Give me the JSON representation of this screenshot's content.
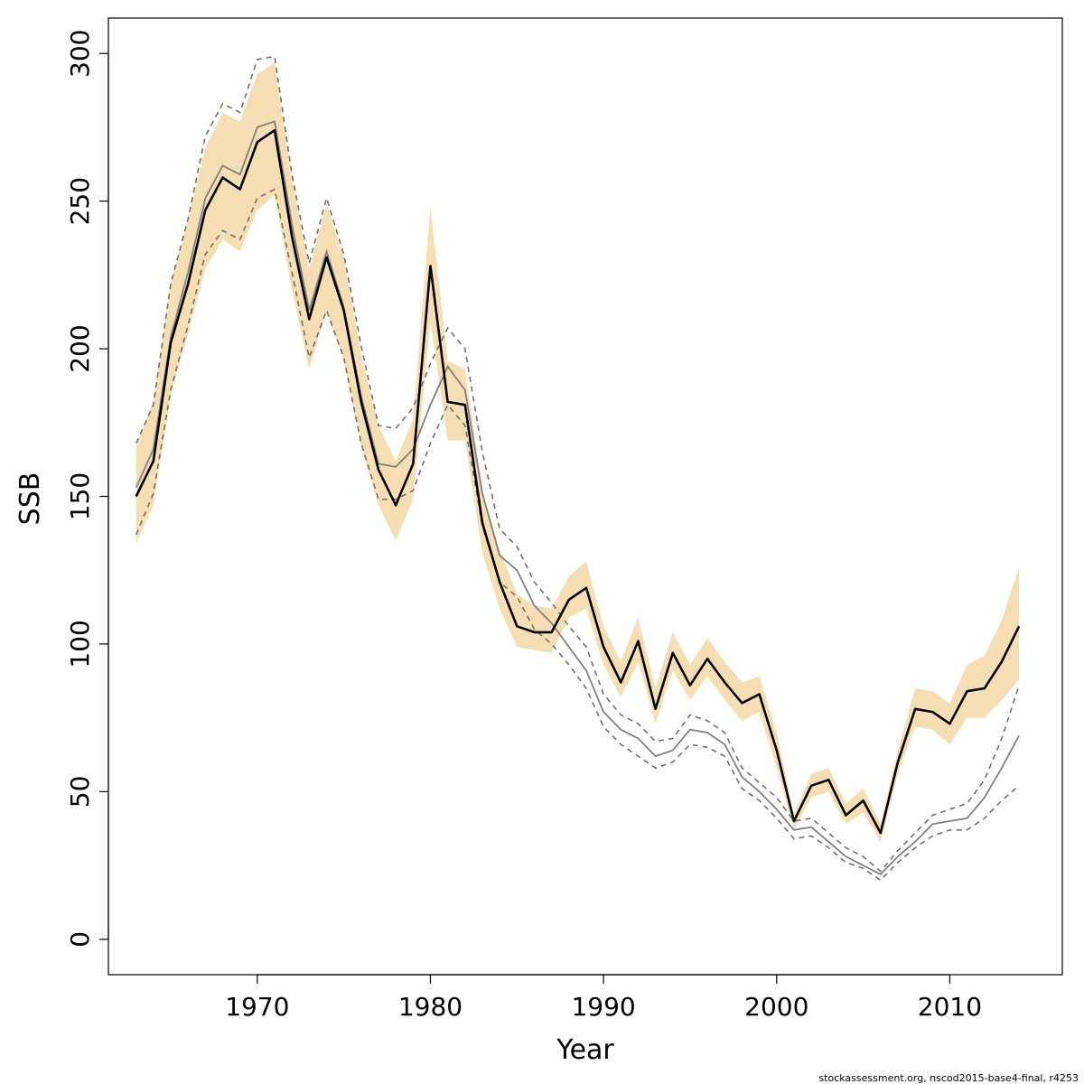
{
  "chart_data": {
    "type": "line",
    "xlabel": "Year",
    "ylabel": "SSB",
    "credit": "stockassessment.org, nscod2015-base4-final, r4253",
    "xlim": [
      1961.4,
      2016.5
    ],
    "ylim": [
      -12,
      312
    ],
    "xticks": [
      1970,
      1980,
      1990,
      2000,
      2010
    ],
    "yticks": [
      0,
      50,
      100,
      150,
      200,
      250,
      300
    ],
    "grid": false,
    "legend": "none",
    "colors": {
      "band": "#f5deb3",
      "estimate": "#000000",
      "comparison": "#808080",
      "comparison_ci": "#707070"
    },
    "x": [
      1963,
      1964,
      1965,
      1966,
      1967,
      1968,
      1969,
      1970,
      1971,
      1972,
      1973,
      1974,
      1975,
      1976,
      1977,
      1978,
      1979,
      1980,
      1981,
      1982,
      1983,
      1984,
      1985,
      1986,
      1987,
      1988,
      1989,
      1990,
      1991,
      1992,
      1993,
      1994,
      1995,
      1996,
      1997,
      1998,
      1999,
      2000,
      2001,
      2002,
      2003,
      2004,
      2005,
      2006,
      2007,
      2008,
      2009,
      2010,
      2011,
      2012,
      2013,
      2014
    ],
    "series": [
      {
        "role": "estimate",
        "values": [
          150,
          162,
          202,
          222,
          247,
          258,
          254,
          270,
          274,
          238,
          210,
          231,
          213,
          182,
          159,
          147,
          161,
          228,
          182,
          181,
          141,
          121,
          106,
          104,
          104,
          115,
          119,
          99,
          87,
          101,
          78,
          97,
          86,
          95,
          87,
          80,
          83,
          64,
          40,
          52,
          54,
          42,
          47,
          36,
          60,
          78,
          77,
          73,
          84,
          85,
          94,
          106
        ]
      },
      {
        "role": "band_upper",
        "values": [
          167,
          182,
          222,
          244,
          268,
          280,
          277,
          293,
          297,
          258,
          227,
          249,
          231,
          198,
          174,
          162,
          176,
          248,
          196,
          193,
          152,
          132,
          117,
          113,
          112,
          123,
          128,
          106,
          94,
          109,
          85,
          104,
          93,
          102,
          94,
          87,
          89,
          70,
          42,
          56,
          58,
          46,
          51,
          39,
          64,
          85,
          84,
          80,
          93,
          96,
          108,
          126
        ]
      },
      {
        "role": "band_lower",
        "values": [
          134,
          147,
          184,
          205,
          227,
          237,
          233,
          247,
          252,
          220,
          193,
          213,
          196,
          167,
          147,
          135,
          149,
          209,
          169,
          169,
          131,
          112,
          99,
          98,
          97,
          109,
          112,
          93,
          82,
          94,
          73,
          91,
          81,
          89,
          81,
          74,
          77,
          58,
          37,
          48,
          50,
          39,
          43,
          33,
          56,
          72,
          71,
          66,
          75,
          75,
          81,
          88
        ]
      },
      {
        "role": "comparison",
        "values": [
          153,
          166,
          204,
          226,
          251,
          262,
          259,
          275,
          277,
          242,
          213,
          233,
          214,
          184,
          161,
          160,
          166,
          181,
          194,
          186,
          151,
          130,
          125,
          113,
          107,
          99,
          91,
          77,
          71,
          68,
          62,
          64,
          71,
          70,
          66,
          55,
          50,
          44,
          37,
          38,
          33,
          28,
          25,
          22,
          28,
          33,
          39,
          40,
          41,
          48,
          58,
          69
        ]
      },
      {
        "role": "comparison_upper",
        "values": [
          168,
          181,
          222,
          244,
          272,
          283,
          280,
          298,
          299,
          259,
          229,
          251,
          232,
          201,
          174,
          173,
          180,
          195,
          207,
          200,
          165,
          139,
          133,
          121,
          114,
          106,
          99,
          83,
          76,
          73,
          67,
          68,
          76,
          74,
          70,
          58,
          53,
          48,
          40,
          41,
          36,
          31,
          28,
          23,
          30,
          36,
          42,
          44,
          46,
          54,
          68,
          86
        ]
      },
      {
        "role": "comparison_lower",
        "values": [
          137,
          151,
          186,
          208,
          232,
          240,
          237,
          251,
          254,
          226,
          197,
          213,
          197,
          168,
          149,
          149,
          152,
          168,
          181,
          174,
          140,
          121,
          116,
          105,
          100,
          93,
          85,
          72,
          66,
          62,
          58,
          60,
          66,
          65,
          62,
          51,
          47,
          41,
          34,
          35,
          31,
          26,
          24,
          20,
          26,
          31,
          35,
          37,
          37,
          41,
          47,
          52
        ]
      }
    ]
  }
}
